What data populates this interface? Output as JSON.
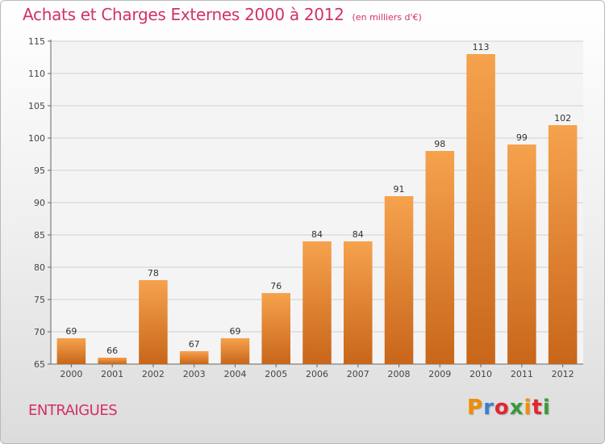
{
  "title": "Achats et Charges Externes 2000 à 2012",
  "unit": "(en milliers d'€)",
  "town": "ENTRAIGUES",
  "logo": {
    "letters": [
      "P",
      "r",
      "o",
      "x",
      "i",
      "t",
      "i"
    ],
    "colors": [
      "#f28c00",
      "#3a7fd0",
      "#e0272e",
      "#3a9a3a",
      "#f28c00",
      "#e0272e",
      "#3a9a3a"
    ]
  },
  "colors": {
    "bar_top": "#f6a24d",
    "bar_bottom": "#c8661a",
    "title": "#d1306b"
  },
  "chart_data": {
    "type": "bar",
    "title": "Achats et Charges Externes 2000 à 2012",
    "xlabel": "",
    "ylabel": "",
    "categories": [
      "2000",
      "2001",
      "2002",
      "2003",
      "2004",
      "2005",
      "2006",
      "2007",
      "2008",
      "2009",
      "2010",
      "2011",
      "2012"
    ],
    "values": [
      69,
      66,
      78,
      67,
      69,
      76,
      84,
      84,
      91,
      98,
      113,
      99,
      102
    ],
    "ylim": [
      65,
      115
    ],
    "yticks": [
      65,
      70,
      75,
      80,
      85,
      90,
      95,
      100,
      105,
      110,
      115
    ],
    "grid": true,
    "data_labels": true
  }
}
